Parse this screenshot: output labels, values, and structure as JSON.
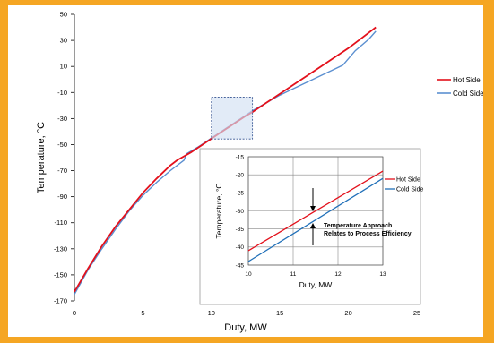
{
  "chart_data": [
    {
      "type": "line",
      "xlabel": "Duty, MW",
      "ylabel": "Temperature, °C",
      "xlim": [
        0,
        25
      ],
      "ylim": [
        -170,
        50
      ],
      "xticks": [
        0,
        5,
        10,
        15,
        20,
        25
      ],
      "yticks": [
        50,
        30,
        10,
        -10,
        -30,
        -50,
        -70,
        -90,
        -110,
        -130,
        -150,
        -170
      ],
      "grid": false,
      "legend_position": "right",
      "series": [
        {
          "name": "Hot Side",
          "color": "#e3101b",
          "x": [
            0,
            1,
            2,
            3,
            4,
            5,
            6,
            7,
            7.5,
            8.5,
            9.5,
            10.5,
            11.5,
            12.5,
            13,
            14,
            15,
            16,
            17,
            18,
            19,
            20,
            21,
            22
          ],
          "y": [
            -163,
            -145,
            -128,
            -113,
            -100,
            -87,
            -76,
            -66,
            -62,
            -56,
            -49,
            -42,
            -35,
            -28,
            -25,
            -18,
            -11,
            -4,
            3,
            10,
            17,
            24,
            32,
            40
          ]
        },
        {
          "name": "Cold Side",
          "color": "#5b8fd0",
          "x": [
            0,
            1,
            2,
            3,
            4,
            5,
            6,
            7,
            8,
            8.2,
            9,
            10,
            11,
            12,
            13,
            14,
            15,
            16,
            17,
            18,
            19,
            19.6,
            20.5,
            21.5,
            22
          ],
          "y": [
            -165,
            -146,
            -130,
            -115,
            -101,
            -89,
            -79,
            -70,
            -62,
            -57,
            -52,
            -45,
            -38,
            -31,
            -24,
            -18,
            -12,
            -7,
            -2,
            3,
            8,
            11,
            22,
            31,
            37
          ]
        }
      ]
    },
    {
      "type": "line",
      "xlabel": "Duty, MW",
      "ylabel": "Temperature, °C",
      "xlim": [
        10,
        13
      ],
      "ylim": [
        -45,
        -15
      ],
      "xticks": [
        10,
        11,
        12,
        13
      ],
      "yticks": [
        -15,
        -20,
        -25,
        -30,
        -35,
        -40,
        -45
      ],
      "grid": true,
      "legend_position": "right",
      "annotation": "Temperature  Approach\nRelates to Process Efficiency",
      "series": [
        {
          "name": "Hot Side",
          "color": "#e3101b",
          "x": [
            10,
            13
          ],
          "y": [
            -41,
            -19
          ]
        },
        {
          "name": "Cold Side",
          "color": "#1f6fb8",
          "x": [
            10,
            13
          ],
          "y": [
            -44,
            -21
          ]
        }
      ]
    }
  ]
}
